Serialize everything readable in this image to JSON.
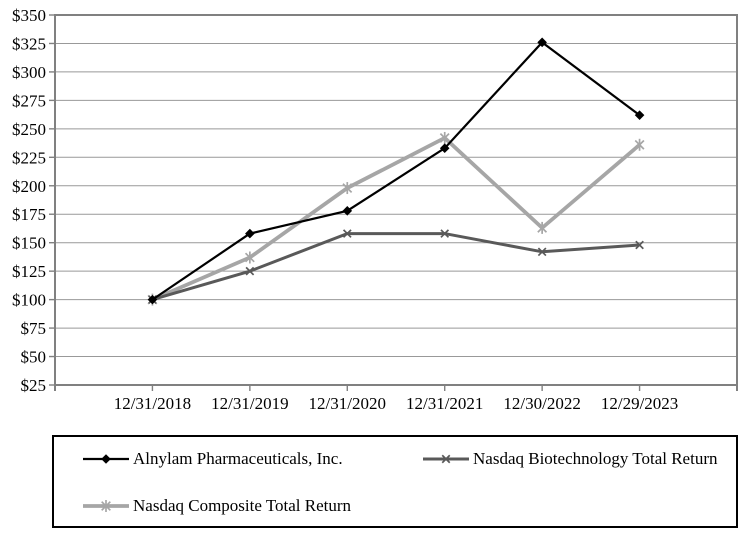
{
  "chart_data": {
    "type": "line",
    "title": "",
    "x_labels": [
      "12/31/2018",
      "12/31/2019",
      "12/31/2020",
      "12/31/2021",
      "12/30/2022",
      "12/29/2023"
    ],
    "y_tick_values": [
      25,
      50,
      75,
      100,
      125,
      150,
      175,
      200,
      225,
      250,
      275,
      300,
      325,
      350
    ],
    "y_tick_labels": [
      "$25",
      "$50",
      "$75",
      "$100",
      "$125",
      "$150",
      "$175",
      "$200",
      "$225",
      "$250",
      "$275",
      "$300",
      "$325",
      "$350"
    ],
    "ylim": [
      25,
      350
    ],
    "grid": true,
    "legend_position": "bottom",
    "series": [
      {
        "name": "Alnylam Pharmaceuticals, Inc.",
        "marker": "diamond",
        "color": "#000000",
        "line_width": 2.2,
        "values": [
          100,
          158,
          178,
          233,
          326,
          262
        ]
      },
      {
        "name": "Nasdaq Biotechnology Total Return",
        "marker": "x",
        "color": "#595959",
        "line_width": 3,
        "values": [
          100,
          125,
          158,
          158,
          142,
          148
        ]
      },
      {
        "name": "Nasdaq Composite Total Return",
        "marker": "asterisk",
        "color": "#a6a6a6",
        "line_width": 3.8,
        "values": [
          100,
          137,
          198,
          242,
          163,
          236
        ]
      }
    ]
  },
  "colors": {
    "axis": "#808080",
    "gridline": "#999999",
    "background": "#ffffff",
    "text": "#000000",
    "legend_border": "#000000"
  }
}
